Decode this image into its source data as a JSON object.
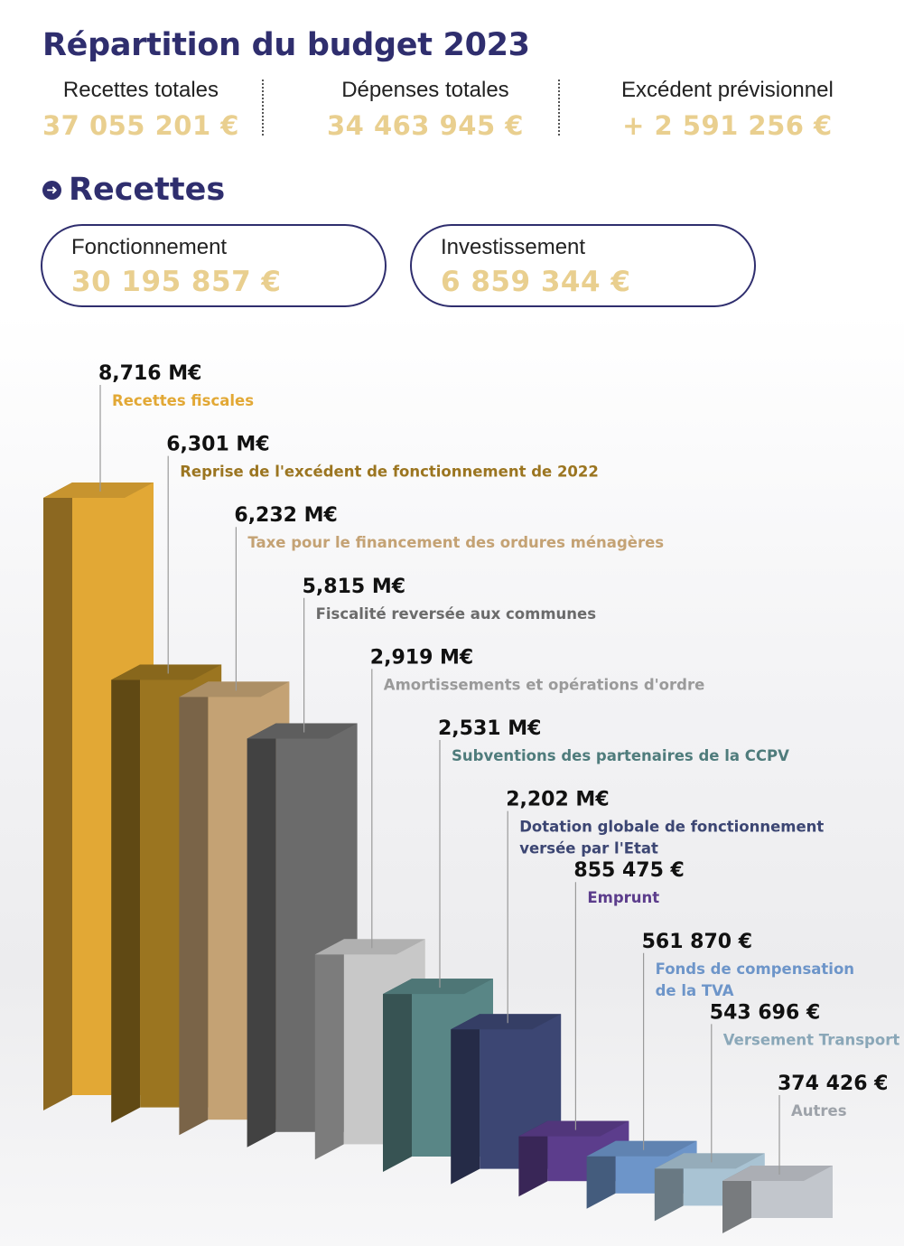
{
  "header": {
    "title": "Répartition du budget 2023",
    "stats": [
      {
        "label": "Recettes totales",
        "value": "37 055 201 €"
      },
      {
        "label": "Dépenses totales",
        "value": "34 463 945 €"
      },
      {
        "label": "Excédent prévisionnel",
        "value": "+ 2 591 256 €"
      }
    ]
  },
  "section": {
    "title": "Recettes"
  },
  "pills": [
    {
      "label": "Fonctionnement",
      "value": "30 195 857 €"
    },
    {
      "label": "Investissement",
      "value": "6 859 344 €"
    }
  ],
  "colors": {
    "title": "#2f2e6e",
    "accent_gold": "#e9cf8f"
  },
  "chart_data": {
    "type": "bar",
    "categories": [
      "Recettes fiscales",
      "Reprise de l'excédent de fonctionnement de 2022",
      "Taxe pour le financement des ordures ménagères",
      "Fiscalité reversée aux communes",
      "Amortissements et opérations d'ordre",
      "Subventions des partenaires de la CCPV",
      "Dotation globale de fonctionnement versée par l'Etat",
      "Emprunt",
      "Fonds de compensation de la TVA",
      "Versement Transport",
      "Autres"
    ],
    "values": [
      8716000,
      6301000,
      6232000,
      5815000,
      2919000,
      2531000,
      2202000,
      855475,
      561870,
      543696,
      374426
    ],
    "value_labels": [
      "8,716 M€",
      "6,301 M€",
      "6,232 M€",
      "5,815 M€",
      "2,919 M€",
      "2,531 M€",
      "2,202 M€",
      "855 475 €",
      "561 870 €",
      "543 696 €",
      "374 426 €"
    ],
    "category_lines": [
      [
        "Recettes fiscales"
      ],
      [
        "Reprise de l'excédent de fonctionnement de 2022"
      ],
      [
        "Taxe pour le financement des ordures ménagères"
      ],
      [
        "Fiscalité reversée aux communes"
      ],
      [
        "Amortissements et opérations d'ordre"
      ],
      [
        "Subventions des partenaires de la CCPV"
      ],
      [
        "Dotation globale de fonctionnement",
        "versée par l'Etat"
      ],
      [
        "Emprunt"
      ],
      [
        "Fonds de compensation",
        "de la TVA"
      ],
      [
        "Versement Transport"
      ],
      [
        "Autres"
      ]
    ],
    "bar_colors": [
      "#e2a835",
      "#9b7520",
      "#c4a274",
      "#6b6b6b",
      "#c8c8c8",
      "#598686",
      "#3c4673",
      "#5c3d8c",
      "#6d95c9",
      "#a9c3d3",
      "#c2c6cc"
    ],
    "label_colors": [
      "#e2a835",
      "#9b7520",
      "#c4a274",
      "#6b6b6b",
      "#9a9a9a",
      "#4f7c7c",
      "#3c4673",
      "#5c3d8c",
      "#6d95c9",
      "#8aa7b8",
      "#9ea3aa"
    ],
    "style": "3d-bars",
    "grid": false
  }
}
